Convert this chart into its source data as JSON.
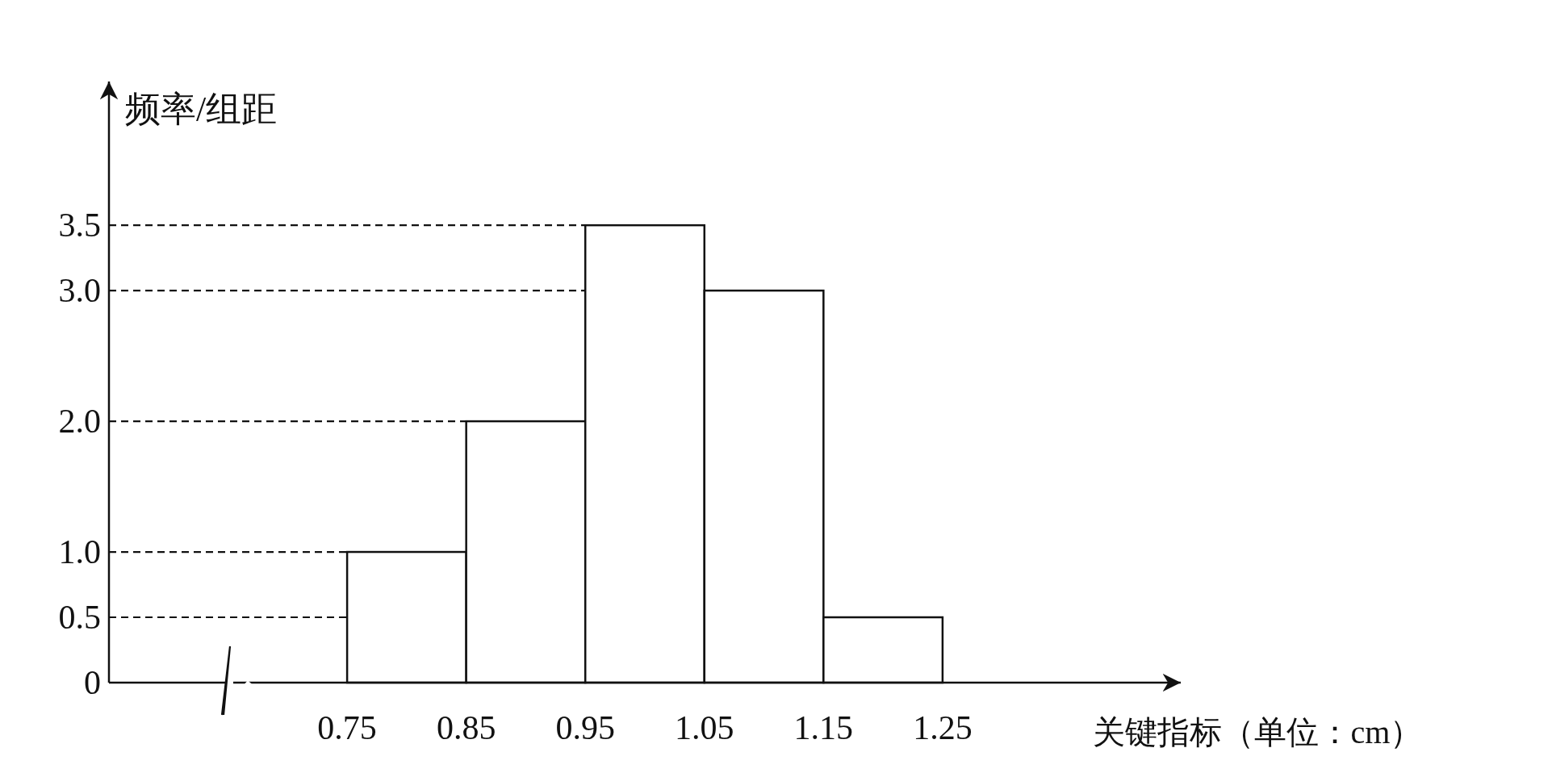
{
  "chart_data": {
    "type": "histogram",
    "ylabel": "频率/组距",
    "xlabel": "关键指标（单位：cm）",
    "bins": [
      0.75,
      0.85,
      0.95,
      1.05,
      1.15,
      1.25
    ],
    "values": [
      1.0,
      2.0,
      3.5,
      3.0,
      0.5
    ],
    "color": "#ffffff",
    "xlim": [
      0.55,
      1.45
    ],
    "ylim": [
      0,
      4.6
    ],
    "xticks": [
      0.75,
      0.85,
      0.95,
      1.05,
      1.15,
      1.25
    ],
    "yticks": [
      {
        "value": 0,
        "label": "0"
      },
      {
        "value": 0.5,
        "label": "0.5"
      },
      {
        "value": 1.0,
        "label": "1.0"
      },
      {
        "value": 2.0,
        "label": "2.0"
      },
      {
        "value": 3.0,
        "label": "3.0"
      },
      {
        "value": 3.5,
        "label": "3.5"
      }
    ],
    "ref_lines": [
      {
        "axis": "y",
        "value": 3.5,
        "line_style": "dashed"
      },
      {
        "axis": "y",
        "value": 3.0,
        "line_style": "dashed"
      },
      {
        "axis": "y",
        "value": 2.0,
        "line_style": "dashed"
      },
      {
        "axis": "y",
        "value": 1.0,
        "line_style": "dashed"
      },
      {
        "axis": "y",
        "value": 0.5,
        "line_style": "dashed"
      }
    ],
    "grid": false
  }
}
